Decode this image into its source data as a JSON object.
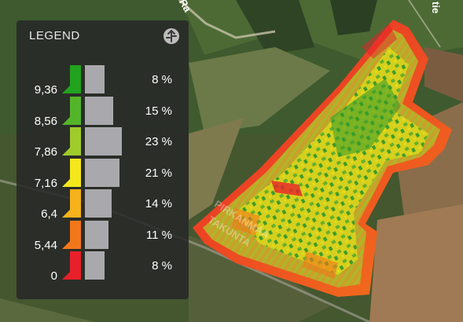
{
  "legend": {
    "title": "LEGEND",
    "collapse_icon": "collapse-arrows-icon",
    "rows": [
      {
        "value": "9,36",
        "percent": "8 %",
        "share": 8,
        "color": "#22a31f"
      },
      {
        "value": "8,56",
        "percent": "15 %",
        "share": 15,
        "color": "#54b52a"
      },
      {
        "value": "7,86",
        "percent": "23 %",
        "share": 23,
        "color": "#9fcc2b"
      },
      {
        "value": "7,16",
        "percent": "21 %",
        "share": 21,
        "color": "#f4e81c"
      },
      {
        "value": "6,4",
        "percent": "14 %",
        "share": 14,
        "color": "#f6b21b"
      },
      {
        "value": "5,44",
        "percent": "11 %",
        "share": 11,
        "color": "#f2771a"
      },
      {
        "value": "0",
        "percent": "8 %",
        "share": 8,
        "color": "#e8202a"
      }
    ]
  },
  "map": {
    "road_label_1": "PIRKANMAA",
    "road_label_2": "TAKUNTA",
    "corner_text_1": "Ra",
    "corner_text_2": "tie"
  }
}
